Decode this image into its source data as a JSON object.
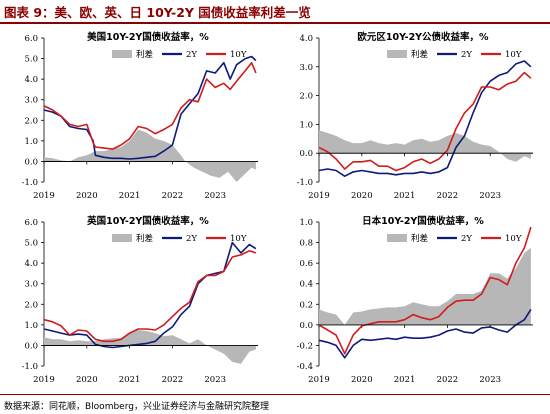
{
  "header": {
    "title": "图表 9：美、欧、英、日 10Y-2Y 国债收益率利差一览"
  },
  "footer": {
    "source": "数据来源：同花顺，Bloomberg，兴业证券经济与金融研究院整理"
  },
  "colors": {
    "spread": "#b7b7b7",
    "y2": "#0d1a7a",
    "y10": "#d01c1c",
    "header_accent": "#8b0000"
  },
  "chart_data": [
    {
      "id": "us",
      "type": "line",
      "title": "美国10Y-2Y国债收益率，%",
      "xlim": [
        2019.0,
        2024.0
      ],
      "ylim": [
        -1.0,
        6.0
      ],
      "yticks": [
        "-1.0",
        "0.0",
        "1.0",
        "2.0",
        "3.0",
        "4.0",
        "5.0",
        "6.0"
      ],
      "xticks": [
        "2019",
        "2020",
        "2021",
        "2022",
        "2023"
      ],
      "legend": [
        "利差",
        "2Y",
        "10Y"
      ],
      "series": [
        {
          "name": "利差",
          "kind": "area",
          "x": [
            2019.0,
            2019.2,
            2019.4,
            2019.6,
            2019.8,
            2020.0,
            2020.2,
            2020.4,
            2020.6,
            2020.8,
            2021.0,
            2021.2,
            2021.4,
            2021.6,
            2021.8,
            2022.0,
            2022.2,
            2022.3,
            2022.5,
            2022.7,
            2022.9,
            2023.1,
            2023.3,
            2023.5,
            2023.7,
            2023.85,
            2023.95
          ],
          "values": [
            0.2,
            0.15,
            0.05,
            0.0,
            0.2,
            0.3,
            0.5,
            0.5,
            0.6,
            0.7,
            1.0,
            1.55,
            1.4,
            1.1,
            1.0,
            0.8,
            0.3,
            0.0,
            -0.3,
            -0.5,
            -0.7,
            -0.8,
            -0.5,
            -1.0,
            -0.6,
            -0.3,
            -0.4
          ]
        },
        {
          "name": "2Y",
          "kind": "line",
          "x": [
            2019.0,
            2019.2,
            2019.4,
            2019.6,
            2019.8,
            2020.0,
            2020.15,
            2020.2,
            2020.4,
            2020.6,
            2020.8,
            2021.0,
            2021.2,
            2021.4,
            2021.6,
            2021.8,
            2022.0,
            2022.2,
            2022.4,
            2022.6,
            2022.8,
            2023.0,
            2023.2,
            2023.35,
            2023.5,
            2023.7,
            2023.85,
            2023.95
          ],
          "values": [
            2.5,
            2.4,
            2.2,
            1.7,
            1.6,
            1.55,
            1.0,
            0.3,
            0.2,
            0.15,
            0.15,
            0.12,
            0.15,
            0.2,
            0.25,
            0.5,
            0.8,
            2.3,
            2.8,
            3.3,
            4.4,
            4.3,
            4.8,
            4.0,
            4.7,
            5.0,
            5.1,
            4.9
          ]
        },
        {
          "name": "10Y",
          "kind": "line",
          "x": [
            2019.0,
            2019.2,
            2019.4,
            2019.6,
            2019.8,
            2020.0,
            2020.15,
            2020.2,
            2020.4,
            2020.6,
            2020.8,
            2021.0,
            2021.2,
            2021.4,
            2021.6,
            2021.8,
            2022.0,
            2022.2,
            2022.4,
            2022.6,
            2022.8,
            2023.0,
            2023.2,
            2023.35,
            2023.5,
            2023.7,
            2023.85,
            2023.95
          ],
          "values": [
            2.7,
            2.5,
            2.2,
            1.8,
            1.7,
            1.8,
            0.9,
            0.7,
            0.65,
            0.6,
            0.8,
            1.1,
            1.7,
            1.6,
            1.35,
            1.55,
            1.8,
            2.6,
            3.0,
            2.9,
            4.0,
            3.6,
            3.8,
            3.5,
            3.9,
            4.4,
            4.8,
            4.3
          ]
        }
      ]
    },
    {
      "id": "eu",
      "type": "line",
      "title": "欧元区10Y-2Y公债收益率，%",
      "xlim": [
        2019.0,
        2024.0
      ],
      "ylim": [
        -1.0,
        4.0
      ],
      "yticks": [
        "-1.0",
        "0.0",
        "1.0",
        "2.0",
        "3.0",
        "4.0"
      ],
      "xticks": [
        "2019",
        "2020",
        "2021",
        "2022",
        "2023"
      ],
      "legend": [
        "利差",
        "2Y",
        "10Y"
      ],
      "series": [
        {
          "name": "利差",
          "kind": "area",
          "x": [
            2019.0,
            2019.2,
            2019.4,
            2019.6,
            2019.8,
            2020.0,
            2020.2,
            2020.4,
            2020.6,
            2020.8,
            2021.0,
            2021.2,
            2021.4,
            2021.6,
            2021.8,
            2022.0,
            2022.2,
            2022.4,
            2022.6,
            2022.8,
            2023.0,
            2023.2,
            2023.4,
            2023.6,
            2023.8,
            2023.95
          ],
          "values": [
            0.8,
            0.7,
            0.6,
            0.45,
            0.35,
            0.35,
            0.45,
            0.35,
            0.3,
            0.35,
            0.3,
            0.45,
            0.5,
            0.4,
            0.45,
            0.6,
            0.7,
            0.6,
            0.4,
            0.3,
            0.25,
            0.05,
            -0.2,
            -0.3,
            -0.1,
            -0.2
          ]
        },
        {
          "name": "2Y",
          "kind": "line",
          "x": [
            2019.0,
            2019.2,
            2019.4,
            2019.6,
            2019.8,
            2020.0,
            2020.2,
            2020.4,
            2020.6,
            2020.8,
            2021.0,
            2021.2,
            2021.4,
            2021.6,
            2021.8,
            2022.0,
            2022.2,
            2022.4,
            2022.6,
            2022.8,
            2023.0,
            2023.2,
            2023.4,
            2023.6,
            2023.8,
            2023.95
          ],
          "values": [
            -0.6,
            -0.55,
            -0.6,
            -0.8,
            -0.65,
            -0.6,
            -0.65,
            -0.7,
            -0.7,
            -0.75,
            -0.7,
            -0.7,
            -0.65,
            -0.7,
            -0.65,
            -0.5,
            0.2,
            0.6,
            1.4,
            2.1,
            2.5,
            2.7,
            2.8,
            3.1,
            3.2,
            3.0
          ]
        },
        {
          "name": "10Y",
          "kind": "line",
          "x": [
            2019.0,
            2019.2,
            2019.4,
            2019.6,
            2019.8,
            2020.0,
            2020.2,
            2020.4,
            2020.6,
            2020.8,
            2021.0,
            2021.2,
            2021.4,
            2021.6,
            2021.8,
            2022.0,
            2022.2,
            2022.4,
            2022.6,
            2022.8,
            2023.0,
            2023.2,
            2023.4,
            2023.6,
            2023.8,
            2023.95
          ],
          "values": [
            0.2,
            0.05,
            -0.2,
            -0.55,
            -0.3,
            -0.3,
            -0.25,
            -0.45,
            -0.45,
            -0.6,
            -0.5,
            -0.3,
            -0.2,
            -0.35,
            -0.2,
            0.1,
            0.85,
            1.4,
            1.7,
            2.3,
            2.3,
            2.2,
            2.4,
            2.5,
            2.8,
            2.6
          ]
        }
      ]
    },
    {
      "id": "uk",
      "type": "line",
      "title": "英国10Y-2Y国债收益率，%",
      "xlim": [
        2019.0,
        2024.0
      ],
      "ylim": [
        -1.0,
        6.0
      ],
      "yticks": [
        "-1.0",
        "0.0",
        "1.0",
        "2.0",
        "3.0",
        "4.0",
        "5.0",
        "6.0"
      ],
      "xticks": [
        "2019",
        "2020",
        "2021",
        "2022",
        "2023"
      ],
      "legend": [
        "利差",
        "2Y",
        "10Y"
      ],
      "series": [
        {
          "name": "利差",
          "kind": "area",
          "x": [
            2019.0,
            2019.2,
            2019.4,
            2019.6,
            2019.8,
            2020.0,
            2020.2,
            2020.4,
            2020.6,
            2020.8,
            2021.0,
            2021.2,
            2021.4,
            2021.6,
            2021.8,
            2022.0,
            2022.2,
            2022.4,
            2022.6,
            2022.8,
            2023.0,
            2023.2,
            2023.4,
            2023.6,
            2023.8,
            2023.95
          ],
          "values": [
            0.4,
            0.3,
            0.3,
            0.2,
            0.25,
            0.2,
            0.2,
            0.3,
            0.35,
            0.35,
            0.6,
            0.75,
            0.7,
            0.6,
            0.45,
            0.5,
            0.3,
            0.1,
            0.3,
            0.0,
            -0.2,
            -0.4,
            -0.8,
            -0.9,
            -0.3,
            -0.2
          ]
        },
        {
          "name": "2Y",
          "kind": "line",
          "x": [
            2019.0,
            2019.2,
            2019.4,
            2019.6,
            2019.8,
            2020.0,
            2020.2,
            2020.4,
            2020.6,
            2020.8,
            2021.0,
            2021.2,
            2021.4,
            2021.6,
            2021.8,
            2022.0,
            2022.2,
            2022.4,
            2022.6,
            2022.8,
            2023.0,
            2023.2,
            2023.4,
            2023.6,
            2023.8,
            2023.95
          ],
          "values": [
            0.8,
            0.7,
            0.6,
            0.5,
            0.55,
            0.5,
            0.05,
            -0.05,
            -0.1,
            -0.05,
            0.0,
            0.05,
            0.1,
            0.2,
            0.6,
            0.9,
            1.5,
            1.9,
            3.0,
            3.4,
            3.5,
            3.6,
            5.0,
            4.5,
            4.9,
            4.7
          ]
        },
        {
          "name": "10Y",
          "kind": "line",
          "x": [
            2019.0,
            2019.2,
            2019.4,
            2019.6,
            2019.8,
            2020.0,
            2020.2,
            2020.4,
            2020.6,
            2020.8,
            2021.0,
            2021.2,
            2021.4,
            2021.6,
            2021.8,
            2022.0,
            2022.2,
            2022.4,
            2022.6,
            2022.8,
            2023.0,
            2023.2,
            2023.4,
            2023.6,
            2023.8,
            2023.95
          ],
          "values": [
            1.25,
            1.15,
            0.95,
            0.5,
            0.75,
            0.7,
            0.3,
            0.2,
            0.2,
            0.3,
            0.6,
            0.8,
            0.8,
            0.75,
            1.0,
            1.4,
            1.8,
            2.1,
            3.1,
            3.4,
            3.4,
            3.6,
            4.3,
            4.4,
            4.6,
            4.5
          ]
        }
      ]
    },
    {
      "id": "jp",
      "type": "line",
      "title": "日本10Y-2Y国债收益率，%",
      "xlim": [
        2019.0,
        2024.0
      ],
      "ylim": [
        -0.4,
        1.0
      ],
      "yticks": [
        "-0.4",
        "-0.2",
        "0.0",
        "0.2",
        "0.4",
        "0.6",
        "0.8",
        "1.0"
      ],
      "xticks": [
        "2019",
        "2020",
        "2021",
        "2022",
        "2023"
      ],
      "legend": [
        "利差",
        "2Y",
        "10Y"
      ],
      "series": [
        {
          "name": "利差",
          "kind": "area",
          "x": [
            2019.0,
            2019.2,
            2019.4,
            2019.6,
            2019.8,
            2020.0,
            2020.2,
            2020.4,
            2020.6,
            2020.8,
            2021.0,
            2021.2,
            2021.4,
            2021.6,
            2021.8,
            2022.0,
            2022.2,
            2022.4,
            2022.6,
            2022.8,
            2023.0,
            2023.2,
            2023.4,
            2023.6,
            2023.8,
            2023.95
          ],
          "values": [
            0.15,
            0.12,
            0.1,
            0.0,
            0.12,
            0.13,
            0.15,
            0.16,
            0.17,
            0.17,
            0.18,
            0.22,
            0.2,
            0.18,
            0.18,
            0.23,
            0.3,
            0.3,
            0.3,
            0.33,
            0.5,
            0.5,
            0.45,
            0.55,
            0.7,
            0.75
          ]
        },
        {
          "name": "2Y",
          "kind": "line",
          "x": [
            2019.0,
            2019.2,
            2019.4,
            2019.6,
            2019.8,
            2020.0,
            2020.2,
            2020.4,
            2020.6,
            2020.8,
            2021.0,
            2021.2,
            2021.4,
            2021.6,
            2021.8,
            2022.0,
            2022.2,
            2022.4,
            2022.6,
            2022.8,
            2023.0,
            2023.2,
            2023.4,
            2023.6,
            2023.8,
            2023.95
          ],
          "values": [
            -0.15,
            -0.17,
            -0.2,
            -0.32,
            -0.2,
            -0.14,
            -0.15,
            -0.14,
            -0.13,
            -0.14,
            -0.12,
            -0.13,
            -0.13,
            -0.12,
            -0.1,
            -0.06,
            -0.04,
            -0.07,
            -0.08,
            -0.03,
            -0.02,
            -0.05,
            -0.07,
            0.0,
            0.05,
            0.15
          ]
        },
        {
          "name": "10Y",
          "kind": "line",
          "x": [
            2019.0,
            2019.2,
            2019.4,
            2019.6,
            2019.8,
            2020.0,
            2020.2,
            2020.4,
            2020.6,
            2020.8,
            2021.0,
            2021.2,
            2021.4,
            2021.6,
            2021.8,
            2022.0,
            2022.2,
            2022.4,
            2022.6,
            2022.8,
            2023.0,
            2023.2,
            2023.4,
            2023.6,
            2023.8,
            2023.95
          ],
          "values": [
            0.0,
            -0.05,
            -0.1,
            -0.28,
            -0.1,
            -0.01,
            0.01,
            0.03,
            0.03,
            0.03,
            0.05,
            0.1,
            0.07,
            0.05,
            0.08,
            0.17,
            0.23,
            0.24,
            0.24,
            0.3,
            0.46,
            0.44,
            0.39,
            0.6,
            0.75,
            0.95
          ]
        }
      ]
    }
  ]
}
